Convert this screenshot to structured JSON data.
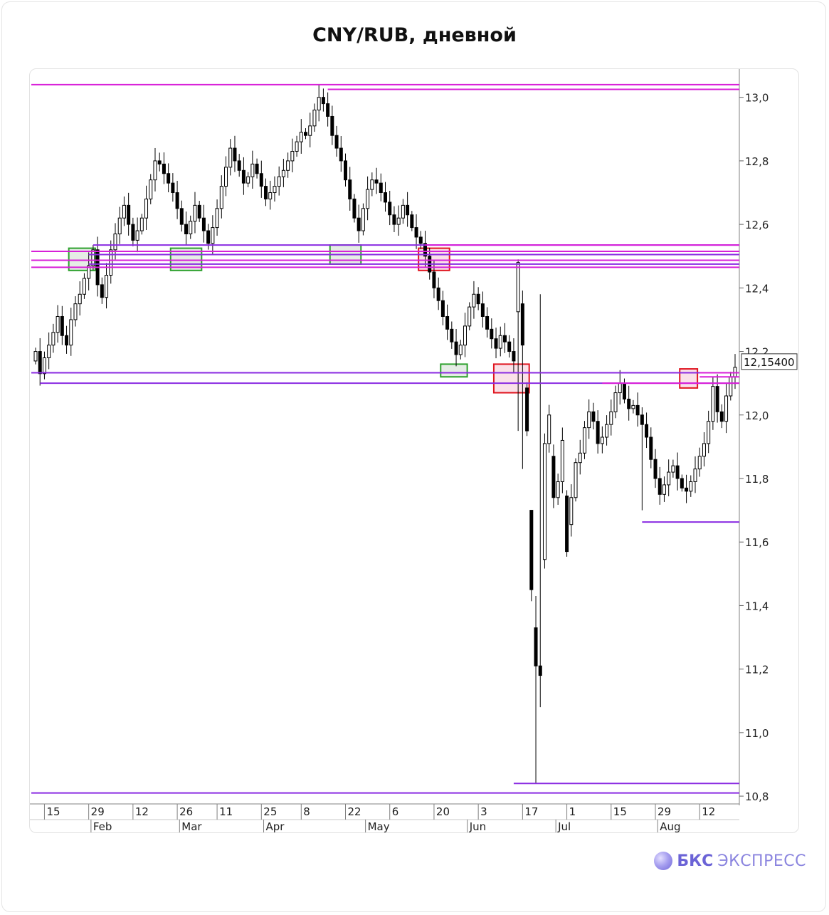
{
  "title": "CNY/RUB, дневной",
  "brand": {
    "icon": "bks-logo-icon",
    "bold": "БКС",
    "light": "ЭКСПРЕСС"
  },
  "colors": {
    "magenta": "#d81fd8",
    "violet": "#8a2be2",
    "green_box": "#2ca02c",
    "red_box": "#e0141e",
    "candle": "#000000"
  },
  "chart_data": {
    "type": "candlestick",
    "title": "CNY/RUB, дневной",
    "price_range": [
      10.78,
      13.08
    ],
    "y_ticks": [
      "13,0",
      "12,8",
      "12,6",
      "12,4",
      "12,2",
      "12,0",
      "11,8",
      "11,6",
      "11,4",
      "11,2",
      "11,0",
      "10,8"
    ],
    "last_price_label": "12,15400",
    "x_day_ticks": [
      {
        "label": "15",
        "i": 2
      },
      {
        "label": "29",
        "i": 12
      },
      {
        "label": "12",
        "i": 22
      },
      {
        "label": "26",
        "i": 32
      },
      {
        "label": "11",
        "i": 41
      },
      {
        "label": "25",
        "i": 51
      },
      {
        "label": "8",
        "i": 60
      },
      {
        "label": "22",
        "i": 70
      },
      {
        "label": "6",
        "i": 80
      },
      {
        "label": "20",
        "i": 90
      },
      {
        "label": "3",
        "i": 100
      },
      {
        "label": "17",
        "i": 110
      },
      {
        "label": "1",
        "i": 120
      },
      {
        "label": "15",
        "i": 130
      },
      {
        "label": "29",
        "i": 140
      },
      {
        "label": "12",
        "i": 150
      }
    ],
    "x_month_ticks": [
      {
        "label": "Feb",
        "i": 13
      },
      {
        "label": "Mar",
        "i": 33
      },
      {
        "label": "Apr",
        "i": 52
      },
      {
        "label": "May",
        "i": 75
      },
      {
        "label": "Jun",
        "i": 98
      },
      {
        "label": "Jul",
        "i": 118
      },
      {
        "label": "Aug",
        "i": 141
      }
    ],
    "close": [
      12.2,
      12.13,
      12.18,
      12.22,
      12.26,
      12.31,
      12.25,
      12.22,
      12.3,
      12.35,
      12.38,
      12.43,
      12.47,
      12.52,
      12.41,
      12.37,
      12.44,
      12.52,
      12.57,
      12.62,
      12.66,
      12.6,
      12.55,
      12.58,
      12.62,
      12.68,
      12.74,
      12.8,
      12.79,
      12.76,
      12.73,
      12.7,
      12.65,
      12.6,
      12.57,
      12.61,
      12.66,
      12.62,
      12.58,
      12.54,
      12.59,
      12.65,
      12.72,
      12.78,
      12.84,
      12.8,
      12.77,
      12.73,
      12.75,
      12.79,
      12.76,
      12.72,
      12.68,
      12.7,
      12.72,
      12.75,
      12.77,
      12.8,
      12.83,
      12.86,
      12.89,
      12.88,
      12.91,
      12.96,
      13.0,
      12.98,
      12.94,
      12.88,
      12.84,
      12.8,
      12.74,
      12.68,
      12.62,
      12.58,
      12.65,
      12.71,
      12.74,
      12.73,
      12.7,
      12.67,
      12.63,
      12.6,
      12.62,
      12.66,
      12.63,
      12.59,
      12.56,
      12.54,
      12.5,
      12.45,
      12.4,
      12.36,
      12.31,
      12.27,
      12.23,
      12.19,
      12.22,
      12.28,
      12.34,
      12.38,
      12.35,
      12.31,
      12.27,
      12.24,
      12.21,
      12.25,
      12.23,
      12.2,
      12.17,
      12.48,
      12.22,
      11.95,
      11.45,
      11.21,
      11.18,
      11.91,
      12.0,
      11.74,
      11.79,
      11.92,
      11.57,
      11.74,
      11.85,
      11.88,
      11.96,
      12.01,
      11.98,
      11.91,
      11.93,
      11.97,
      12.01,
      12.07,
      12.1,
      12.05,
      12.02,
      12.03,
      12.0,
      11.97,
      11.93,
      11.86,
      11.8,
      11.75,
      11.78,
      11.82,
      11.84,
      11.8,
      11.77,
      11.76,
      11.79,
      11.83,
      11.87,
      11.91,
      11.98,
      12.09,
      12.01,
      11.98,
      12.06,
      12.12,
      12.15
    ],
    "levels": [
      {
        "price": 13.04,
        "from_i": 0,
        "color": "magenta"
      },
      {
        "price": 13.025,
        "from_i": 66,
        "color": "magenta"
      },
      {
        "price": 12.535,
        "from_i": 13,
        "color": "violet"
      },
      {
        "price": 12.535,
        "from_i": 88,
        "color": "magenta"
      },
      {
        "price": 12.515,
        "from_i": 0,
        "color": "magenta"
      },
      {
        "price": 12.505,
        "from_i": 12,
        "color": "violet"
      },
      {
        "price": 12.487,
        "from_i": 0,
        "color": "magenta"
      },
      {
        "price": 12.475,
        "from_i": 12,
        "color": "violet"
      },
      {
        "price": 12.465,
        "from_i": 0,
        "color": "magenta"
      },
      {
        "price": 12.133,
        "from_i": 0,
        "color": "violet"
      },
      {
        "price": 12.133,
        "from_i": 150,
        "color": "magenta"
      },
      {
        "price": 12.12,
        "from_i": 150,
        "color": "magenta"
      },
      {
        "price": 12.1,
        "from_i": 1,
        "color": "violet"
      },
      {
        "price": 12.1,
        "from_i": 128,
        "color": "magenta"
      },
      {
        "price": 11.663,
        "from_i": 137,
        "color": "violet"
      },
      {
        "price": 10.84,
        "from_i": 108,
        "color": "violet"
      },
      {
        "price": 10.81,
        "from_i": 0,
        "color": "violet"
      }
    ],
    "boxes": [
      {
        "i0": 8,
        "i1": 13,
        "p_top": 12.525,
        "p_bot": 12.455,
        "color": "green"
      },
      {
        "i0": 31,
        "i1": 37,
        "p_top": 12.525,
        "p_bot": 12.455,
        "color": "green"
      },
      {
        "i0": 67,
        "i1": 73,
        "p_top": 12.535,
        "p_bot": 12.475,
        "color": "green"
      },
      {
        "i0": 87,
        "i1": 93,
        "p_top": 12.525,
        "p_bot": 12.455,
        "color": "red"
      },
      {
        "i0": 92,
        "i1": 97,
        "p_top": 12.16,
        "p_bot": 12.12,
        "color": "green"
      },
      {
        "i0": 104,
        "i1": 111,
        "p_top": 12.16,
        "p_bot": 12.07,
        "color": "red"
      },
      {
        "i0": 146,
        "i1": 149,
        "p_top": 12.145,
        "p_bot": 12.085,
        "color": "red"
      }
    ]
  }
}
